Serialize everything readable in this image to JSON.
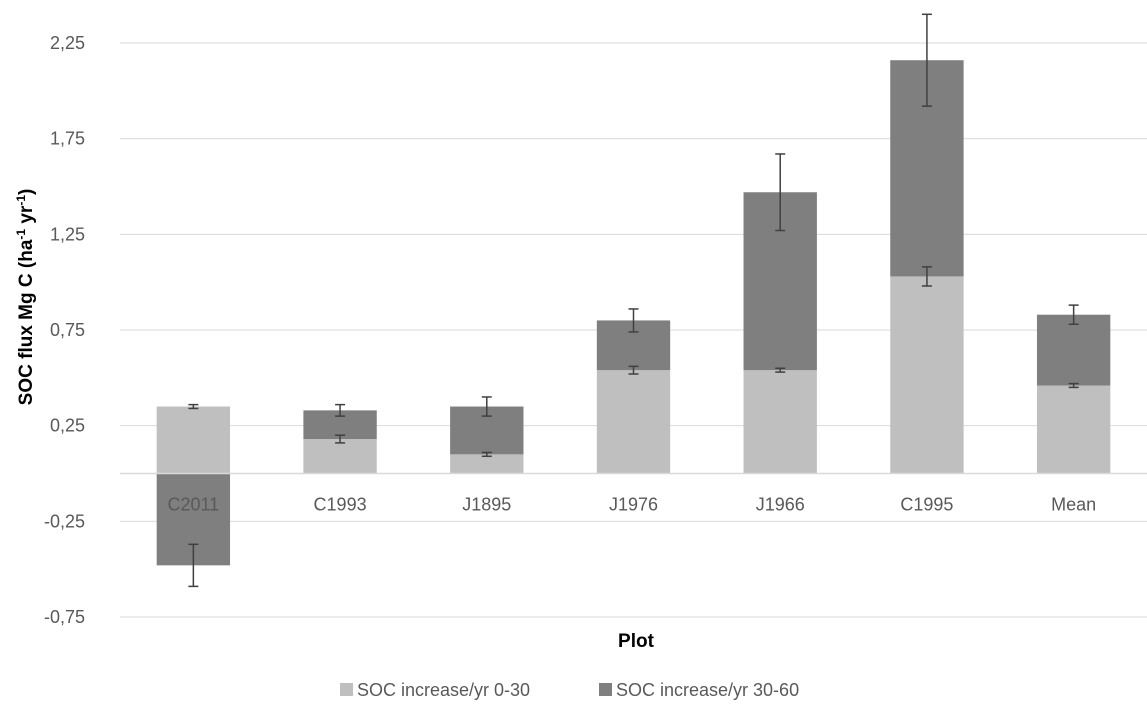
{
  "chart_data": {
    "type": "bar",
    "stacked": true,
    "categories": [
      "C2011",
      "C1993",
      "J1895",
      "J1976",
      "J1966",
      "C1995",
      "Mean"
    ],
    "series": [
      {
        "name": "SOC increase/yr 0-30",
        "color": "#bfbfbf",
        "values": [
          0.35,
          0.18,
          0.1,
          0.54,
          0.54,
          1.03,
          0.46
        ],
        "error": [
          0.01,
          0.02,
          0.01,
          0.02,
          0.01,
          0.05,
          0.01
        ]
      },
      {
        "name": "SOC increase/yr 30-60",
        "color": "#7f7f7f",
        "values": [
          -0.48,
          0.15,
          0.25,
          0.26,
          0.93,
          1.13,
          0.37
        ],
        "error": [
          0.11,
          0.03,
          0.05,
          0.06,
          0.2,
          0.24,
          0.05
        ]
      }
    ],
    "xlabel": "Plot",
    "ylabel": {
      "main": "SOC flux Mg C (ha",
      "sup1": "-1",
      "mid": " yr",
      "sup2": "-1",
      "end": ")"
    },
    "yticks": [
      "-0,75",
      "-0,25",
      "0,25",
      "0,75",
      "1,25",
      "1,75",
      "2,25"
    ],
    "ylim": [
      -0.75,
      2.25
    ],
    "grid": true,
    "legend": "bottom"
  }
}
